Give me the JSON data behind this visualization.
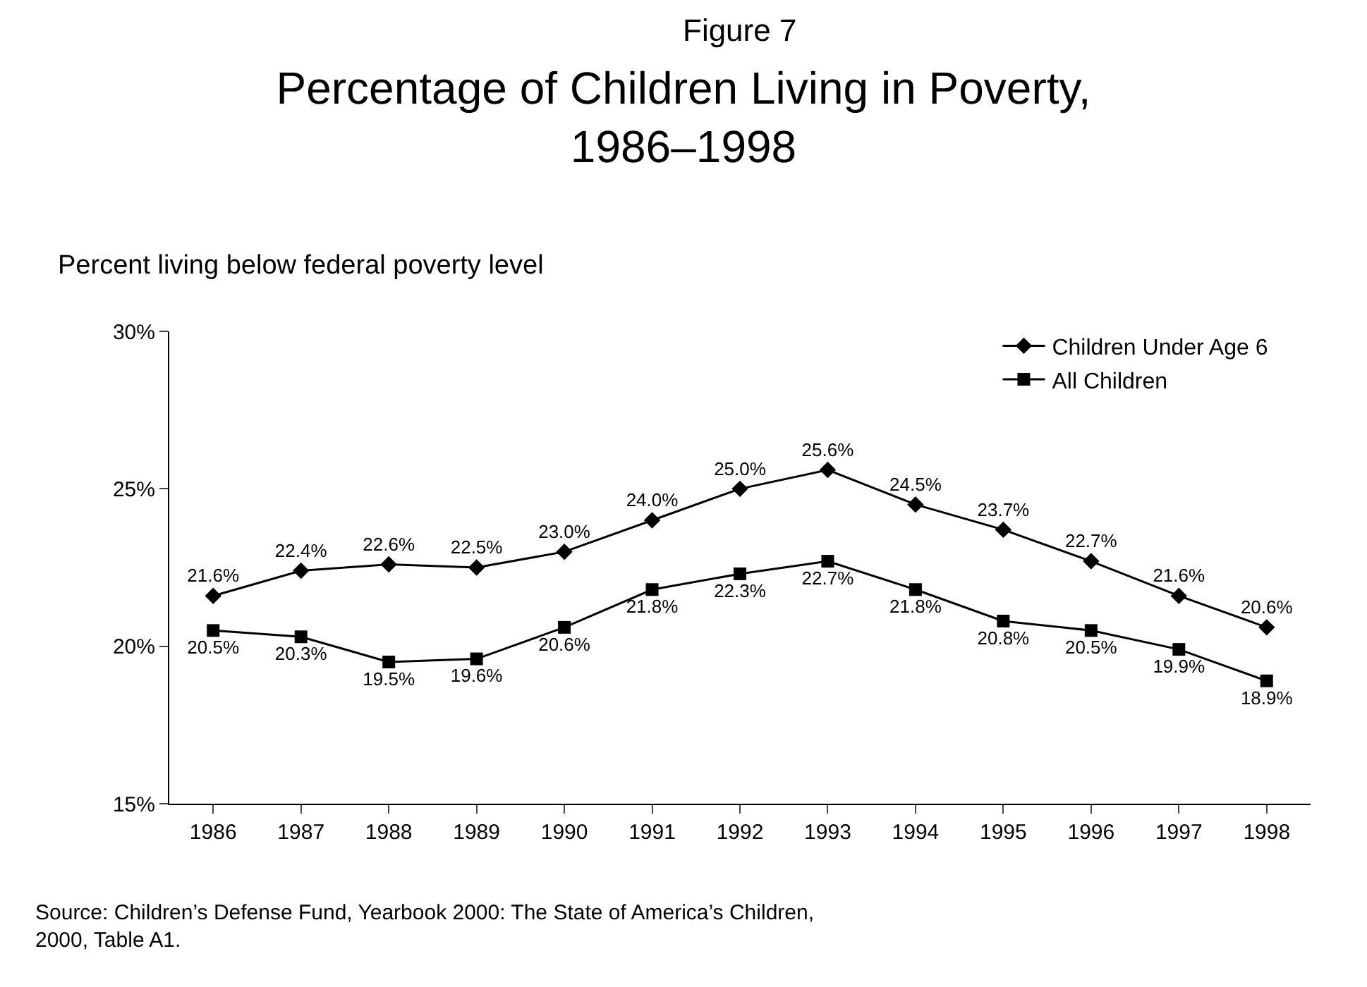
{
  "chart_data": {
    "type": "line",
    "subtitle": "Figure 7",
    "title": "Percentage of Children Living in Poverty,\n1986–1998",
    "ylabel": "Percent living below federal poverty level",
    "categories": [
      "1986",
      "1987",
      "1988",
      "1989",
      "1990",
      "1991",
      "1992",
      "1993",
      "1994",
      "1995",
      "1996",
      "1997",
      "1998"
    ],
    "series": [
      {
        "name": "Children Under Age 6",
        "color": "#000000",
        "marker": "diamond",
        "values": [
          21.6,
          22.4,
          22.6,
          22.5,
          23.0,
          24.0,
          25.0,
          25.6,
          24.5,
          23.7,
          22.7,
          21.6,
          20.6
        ],
        "value_labels": [
          "21.6%",
          "22.4%",
          "22.6%",
          "22.5%",
          "23.0%",
          "24.0%",
          "25.0%",
          "25.6%",
          "24.5%",
          "23.7%",
          "22.7%",
          "21.6%",
          "20.6%"
        ]
      },
      {
        "name": "All Children",
        "color": "#000000",
        "marker": "square",
        "values": [
          20.5,
          20.3,
          19.5,
          19.6,
          20.6,
          21.8,
          22.3,
          22.7,
          21.8,
          20.8,
          20.5,
          19.9,
          18.9
        ],
        "value_labels": [
          "20.5%",
          "20.3%",
          "19.5%",
          "19.6%",
          "20.6%",
          "21.8%",
          "22.3%",
          "22.7%",
          "21.8%",
          "20.8%",
          "20.5%",
          "19.9%",
          "18.9%"
        ]
      }
    ],
    "ylim": [
      15,
      30
    ],
    "yticks": [
      {
        "value": 15,
        "label": "15%"
      },
      {
        "value": 20,
        "label": "20%"
      },
      {
        "value": 25,
        "label": "25%"
      },
      {
        "value": 30,
        "label": "30%"
      }
    ],
    "legend": "top right",
    "line_style": "solid",
    "annotations": [
      "Source: Children’s Defense Fund, Yearbook 2000: The State of America’s Children,\n2000, Table A1."
    ]
  }
}
